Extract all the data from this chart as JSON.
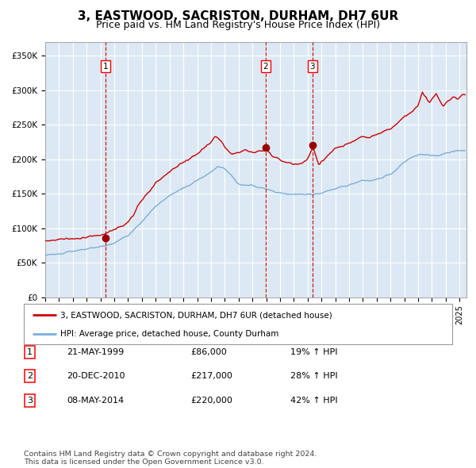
{
  "title": "3, EASTWOOD, SACRISTON, DURHAM, DH7 6UR",
  "subtitle": "Price paid vs. HM Land Registry's House Price Index (HPI)",
  "title_fontsize": 11,
  "subtitle_fontsize": 9,
  "background_color": "#dce9f5",
  "fig_bg_color": "#ffffff",
  "red_line_color": "#cc0000",
  "blue_line_color": "#7aaed6",
  "sale_marker_color": "#990000",
  "vline_color": "#cc0000",
  "yticks": [
    0,
    50000,
    100000,
    150000,
    200000,
    250000,
    300000,
    350000
  ],
  "ylim": [
    0,
    370000
  ],
  "xlim_start": 1995.0,
  "xlim_end": 2025.5,
  "sales": [
    {
      "date_str": "21-MAY-1999",
      "date_dec": 1999.38,
      "price": 86000,
      "label": "1"
    },
    {
      "date_str": "20-DEC-2010",
      "date_dec": 2010.97,
      "price": 217000,
      "label": "2"
    },
    {
      "date_str": "08-MAY-2014",
      "date_dec": 2014.35,
      "price": 220000,
      "label": "3"
    }
  ],
  "legend_line1": "3, EASTWOOD, SACRISTON, DURHAM, DH7 6UR (detached house)",
  "legend_line2": "HPI: Average price, detached house, County Durham",
  "table_rows": [
    [
      "1",
      "21-MAY-1999",
      "£86,000",
      "19% ↑ HPI"
    ],
    [
      "2",
      "20-DEC-2010",
      "£217,000",
      "28% ↑ HPI"
    ],
    [
      "3",
      "08-MAY-2014",
      "£220,000",
      "42% ↑ HPI"
    ]
  ],
  "footer": "Contains HM Land Registry data © Crown copyright and database right 2024.\nThis data is licensed under the Open Government Licence v3.0.",
  "grid_color": "#ffffff",
  "grid_linewidth": 0.8,
  "hpi_keypoints": [
    [
      1995.0,
      65000
    ],
    [
      1996.0,
      67000
    ],
    [
      1997.0,
      69000
    ],
    [
      1998.0,
      72000
    ],
    [
      1999.0,
      74000
    ],
    [
      2000.0,
      78000
    ],
    [
      2001.0,
      88000
    ],
    [
      2002.0,
      108000
    ],
    [
      2003.0,
      130000
    ],
    [
      2004.0,
      148000
    ],
    [
      2005.0,
      158000
    ],
    [
      2006.0,
      168000
    ],
    [
      2007.0,
      180000
    ],
    [
      2007.5,
      188000
    ],
    [
      2008.0,
      185000
    ],
    [
      2008.5,
      175000
    ],
    [
      2009.0,
      165000
    ],
    [
      2009.5,
      162000
    ],
    [
      2010.0,
      163000
    ],
    [
      2010.5,
      160000
    ],
    [
      2011.0,
      158000
    ],
    [
      2011.5,
      155000
    ],
    [
      2012.0,
      152000
    ],
    [
      2012.5,
      150000
    ],
    [
      2013.0,
      149000
    ],
    [
      2013.5,
      149000
    ],
    [
      2014.0,
      149000
    ],
    [
      2014.5,
      150000
    ],
    [
      2015.0,
      152000
    ],
    [
      2015.5,
      155000
    ],
    [
      2016.0,
      158000
    ],
    [
      2016.5,
      160000
    ],
    [
      2017.0,
      162000
    ],
    [
      2017.5,
      165000
    ],
    [
      2018.0,
      168000
    ],
    [
      2018.5,
      170000
    ],
    [
      2019.0,
      172000
    ],
    [
      2019.5,
      175000
    ],
    [
      2020.0,
      178000
    ],
    [
      2020.5,
      185000
    ],
    [
      2021.0,
      195000
    ],
    [
      2021.5,
      200000
    ],
    [
      2022.0,
      205000
    ],
    [
      2022.5,
      207000
    ],
    [
      2023.0,
      206000
    ],
    [
      2023.5,
      205000
    ],
    [
      2024.0,
      207000
    ],
    [
      2024.5,
      210000
    ],
    [
      2025.3,
      212000
    ]
  ],
  "prop_keypoints": [
    [
      1995.0,
      72000
    ],
    [
      1996.0,
      74000
    ],
    [
      1997.0,
      76000
    ],
    [
      1998.0,
      79000
    ],
    [
      1999.0,
      83000
    ],
    [
      1999.38,
      86000
    ],
    [
      2000.0,
      90000
    ],
    [
      2001.0,
      102000
    ],
    [
      2002.0,
      130000
    ],
    [
      2003.0,
      158000
    ],
    [
      2004.0,
      178000
    ],
    [
      2005.0,
      192000
    ],
    [
      2006.0,
      205000
    ],
    [
      2007.0,
      220000
    ],
    [
      2007.3,
      228000
    ],
    [
      2007.8,
      222000
    ],
    [
      2008.0,
      215000
    ],
    [
      2008.5,
      205000
    ],
    [
      2009.0,
      208000
    ],
    [
      2009.5,
      215000
    ],
    [
      2010.0,
      212000
    ],
    [
      2010.5,
      213000
    ],
    [
      2010.97,
      217000
    ],
    [
      2011.2,
      215000
    ],
    [
      2011.5,
      208000
    ],
    [
      2012.0,
      204000
    ],
    [
      2012.5,
      200000
    ],
    [
      2013.0,
      198000
    ],
    [
      2013.5,
      200000
    ],
    [
      2014.0,
      204000
    ],
    [
      2014.35,
      220000
    ],
    [
      2014.5,
      215000
    ],
    [
      2014.8,
      195000
    ],
    [
      2015.0,
      200000
    ],
    [
      2015.5,
      210000
    ],
    [
      2016.0,
      218000
    ],
    [
      2016.5,
      222000
    ],
    [
      2017.0,
      228000
    ],
    [
      2017.5,
      235000
    ],
    [
      2018.0,
      240000
    ],
    [
      2018.5,
      238000
    ],
    [
      2019.0,
      242000
    ],
    [
      2019.5,
      248000
    ],
    [
      2020.0,
      252000
    ],
    [
      2020.5,
      258000
    ],
    [
      2021.0,
      268000
    ],
    [
      2021.5,
      275000
    ],
    [
      2022.0,
      285000
    ],
    [
      2022.3,
      305000
    ],
    [
      2022.5,
      298000
    ],
    [
      2022.8,
      290000
    ],
    [
      2023.0,
      295000
    ],
    [
      2023.3,
      302000
    ],
    [
      2023.5,
      295000
    ],
    [
      2023.8,
      288000
    ],
    [
      2024.0,
      292000
    ],
    [
      2024.3,
      298000
    ],
    [
      2024.6,
      302000
    ],
    [
      2024.9,
      298000
    ],
    [
      2025.3,
      302000
    ]
  ]
}
